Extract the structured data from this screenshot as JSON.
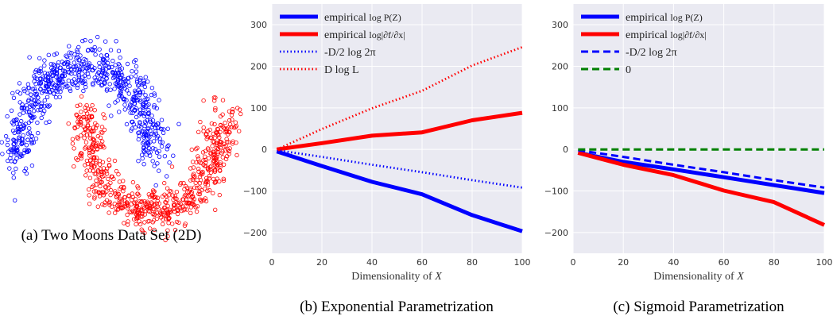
{
  "chart_data": [
    {
      "type": "scatter",
      "caption": "(a) Two Moons Data Set (2D)",
      "title": "",
      "xlabel": "",
      "ylabel": "",
      "grid": false,
      "axes_visible": false,
      "seed": 7,
      "n_points_per_moon": 700,
      "noise": 0.12,
      "series": [
        {
          "name": "",
          "color": "#0000ff",
          "marker": "open-circle",
          "moon": "upper"
        },
        {
          "name": "",
          "color": "#ff0000",
          "marker": "open-circle",
          "moon": "lower"
        }
      ]
    },
    {
      "type": "line",
      "caption": "(b) Exponential Parametrization",
      "title": "",
      "xlabel": "Dimensionality of X",
      "ylabel": "",
      "xlim": [
        0,
        100
      ],
      "ylim": [
        -250,
        350
      ],
      "xticks": [
        0,
        20,
        40,
        60,
        80,
        100
      ],
      "yticks": [
        -200,
        -100,
        0,
        100,
        200,
        300
      ],
      "xtick_labels": [
        "0",
        "20",
        "40",
        "60",
        "80",
        "100"
      ],
      "ytick_labels": [
        "−200",
        "−100",
        "0",
        "100",
        "200",
        "300"
      ],
      "grid": true,
      "legend_position": "top-left",
      "x": [
        2,
        20,
        40,
        60,
        80,
        100
      ],
      "series": [
        {
          "name": "empirical log P(Z)",
          "color": "#0000ff",
          "style": "solid",
          "values": [
            -5,
            -40,
            -78,
            -108,
            -158,
            -197
          ]
        },
        {
          "name": "empirical log|∂f/∂x|",
          "color": "#ff0000",
          "style": "solid",
          "values": [
            0,
            15,
            33,
            41,
            70,
            88
          ]
        },
        {
          "name": "-D/2 log 2π",
          "color": "#0000ff",
          "style": "dotted",
          "values": [
            -2,
            -18,
            -37,
            -55,
            -74,
            -92
          ]
        },
        {
          "name": "D log L",
          "color": "#ff0000",
          "style": "dotted",
          "values": [
            0,
            49,
            99,
            141,
            202,
            246
          ]
        }
      ]
    },
    {
      "type": "line",
      "caption": "(c) Sigmoid Parametrization",
      "title": "",
      "xlabel": "Dimensionality of X",
      "ylabel": "",
      "xlim": [
        0,
        100
      ],
      "ylim": [
        -250,
        350
      ],
      "xticks": [
        0,
        20,
        40,
        60,
        80,
        100
      ],
      "yticks": [
        -200,
        -100,
        0,
        100,
        200,
        300
      ],
      "xtick_labels": [
        "0",
        "20",
        "40",
        "60",
        "80",
        "100"
      ],
      "ytick_labels": [
        "−200",
        "−100",
        "0",
        "100",
        "200",
        "300"
      ],
      "grid": true,
      "legend_position": "top-left",
      "x": [
        2,
        20,
        40,
        60,
        80,
        100
      ],
      "series": [
        {
          "name": "empirical log P(Z)",
          "color": "#0000ff",
          "style": "solid",
          "values": [
            -8,
            -30,
            -48,
            -67,
            -86,
            -105
          ]
        },
        {
          "name": "empirical log|∂f/∂x|",
          "color": "#ff0000",
          "style": "solid",
          "values": [
            -8,
            -37,
            -62,
            -99,
            -127,
            -182
          ]
        },
        {
          "name": "-D/2 log 2π",
          "color": "#0000ff",
          "style": "dashed",
          "values": [
            -2,
            -18,
            -37,
            -55,
            -74,
            -92
          ]
        },
        {
          "name": "0",
          "color": "#008000",
          "style": "dashed",
          "values": [
            0,
            0,
            0,
            0,
            0,
            0
          ]
        }
      ]
    }
  ]
}
